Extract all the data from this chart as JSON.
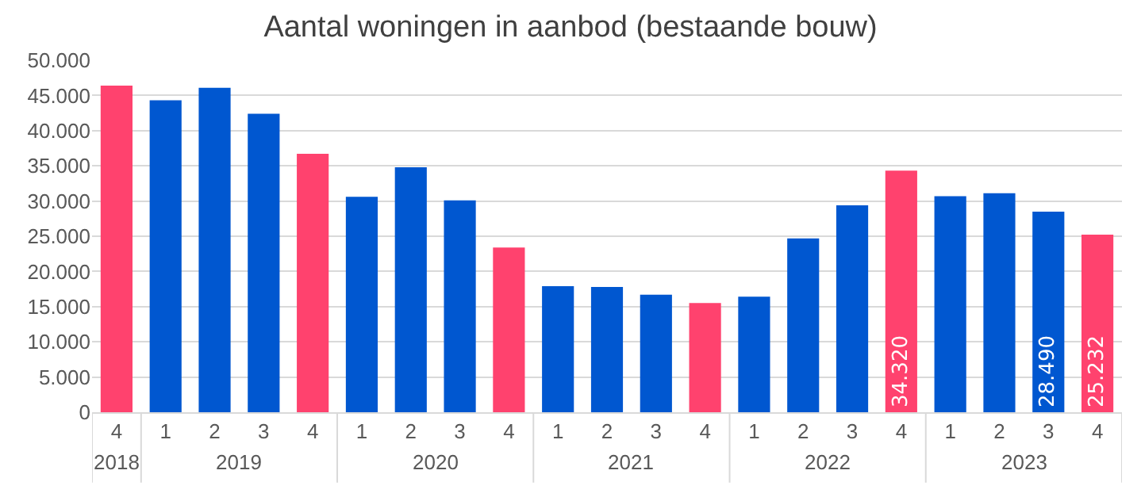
{
  "chart_data": {
    "type": "bar",
    "title": "Aantal woningen in aanbod (bestaande bouw)",
    "categories": [
      "4",
      "1",
      "2",
      "3",
      "4",
      "1",
      "2",
      "3",
      "4",
      "1",
      "2",
      "3",
      "4",
      "1",
      "2",
      "3",
      "4",
      "1",
      "2",
      "3",
      "4"
    ],
    "annotations": [
      "2018",
      "2019",
      "2020",
      "2021",
      "2022",
      "2023"
    ],
    "values": [
      46400,
      44300,
      46100,
      42400,
      36700,
      30600,
      34800,
      30100,
      23400,
      17900,
      17800,
      16700,
      15500,
      16400,
      24700,
      29400,
      34320,
      30700,
      31100,
      28490,
      25232
    ],
    "value_labels": [
      null,
      null,
      null,
      null,
      null,
      null,
      null,
      null,
      null,
      null,
      null,
      null,
      null,
      null,
      null,
      null,
      "34.320",
      null,
      null,
      "28.490",
      "25.232"
    ],
    "colors": [
      "#ff426e",
      "#0057d0",
      "#0057d0",
      "#0057d0",
      "#ff426e",
      "#0057d0",
      "#0057d0",
      "#0057d0",
      "#ff426e",
      "#0057d0",
      "#0057d0",
      "#0057d0",
      "#ff426e",
      "#0057d0",
      "#0057d0",
      "#0057d0",
      "#ff426e",
      "#0057d0",
      "#0057d0",
      "#0057d0",
      "#ff426e"
    ],
    "ylim": [
      0,
      50000
    ],
    "yticks": [
      {
        "value": 0,
        "label": "0"
      },
      {
        "value": 5000,
        "label": "5.000"
      },
      {
        "value": 10000,
        "label": "10.000"
      },
      {
        "value": 15000,
        "label": "15.000"
      },
      {
        "value": 20000,
        "label": "20.000"
      },
      {
        "value": 25000,
        "label": "25.000"
      },
      {
        "value": 30000,
        "label": "30.000"
      },
      {
        "value": 35000,
        "label": "35.000"
      },
      {
        "value": 40000,
        "label": "40.000"
      },
      {
        "value": 45000,
        "label": "45.000"
      },
      {
        "value": 50000,
        "label": "50.000"
      }
    ],
    "grid": "y"
  }
}
